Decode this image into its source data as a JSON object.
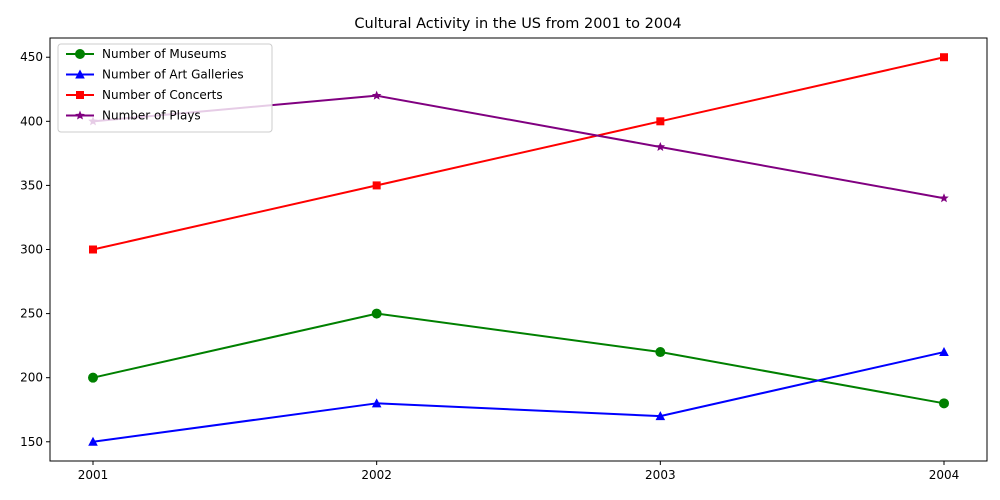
{
  "chart_data": {
    "type": "line",
    "title": "Cultural Activity in the US from 2001 to 2004",
    "xlabel": "",
    "ylabel": "",
    "x": [
      "2001",
      "2002",
      "2003",
      "2004"
    ],
    "ylim": [
      135,
      465
    ],
    "yticks": [
      150,
      200,
      250,
      300,
      350,
      400,
      450
    ],
    "grid": false,
    "legend_position": "top-left",
    "series": [
      {
        "name": "Number of Museums",
        "values": [
          200,
          250,
          220,
          180
        ],
        "color": "#008000",
        "marker": "circle"
      },
      {
        "name": "Number of Art Galleries",
        "values": [
          150,
          180,
          170,
          220
        ],
        "color": "#0000ff",
        "marker": "triangle"
      },
      {
        "name": "Number of Concerts",
        "values": [
          300,
          350,
          400,
          450
        ],
        "color": "#ff0000",
        "marker": "square"
      },
      {
        "name": "Number of Plays",
        "values": [
          400,
          420,
          380,
          340
        ],
        "color": "#800080",
        "marker": "star"
      }
    ]
  }
}
